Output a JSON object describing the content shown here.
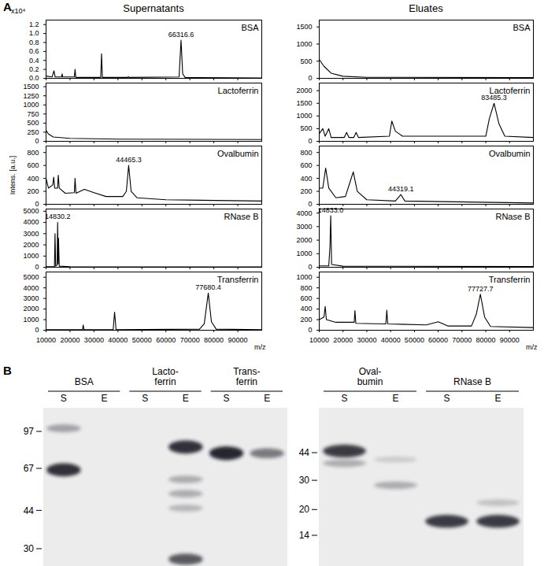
{
  "panel_A": {
    "label": "A",
    "column_titles": [
      "Supernatants",
      "Eluates"
    ]
  },
  "chart_data": [
    {
      "type": "line",
      "panel": "Supernatants",
      "title": "BSA",
      "axis_exponent": "x10⁴",
      "color": "#000000",
      "tick_labels": "y",
      "x": [
        10000,
        12500,
        13300,
        13800,
        16500,
        16700,
        17000,
        21800,
        22100,
        22400,
        32800,
        33150,
        33500,
        44000,
        44300,
        44600,
        65500,
        66316.6,
        67000,
        68000,
        100000
      ],
      "values": [
        0.05,
        0.03,
        0.17,
        0.03,
        0.03,
        0.1,
        0.03,
        0.03,
        0.2,
        0.02,
        0.02,
        0.55,
        0.02,
        0.02,
        0.04,
        0.02,
        0.03,
        0.85,
        0.1,
        0.02,
        0.01
      ],
      "xlim": [
        10000,
        100000
      ],
      "xticks": [
        10000,
        20000,
        30000,
        40000,
        50000,
        60000,
        70000,
        80000,
        90000
      ],
      "ylim": [
        0,
        1.3
      ],
      "yticks": [
        {
          "value": 0,
          "label": "0.0"
        },
        {
          "value": 0.2,
          "label": "0.2"
        },
        {
          "value": 0.4,
          "label": "0.4"
        },
        {
          "value": 0.6,
          "label": "0.6"
        },
        {
          "value": 0.8,
          "label": "0.8"
        },
        {
          "value": 1.0,
          "label": "1.0"
        },
        {
          "value": 1.2,
          "label": "1.2"
        }
      ],
      "annotations": [
        {
          "text": "66316.6",
          "x": 66316.6,
          "y": 0.85
        }
      ]
    },
    {
      "type": "line",
      "panel": "Supernatants",
      "title": "Lactoferrin",
      "color": "#000000",
      "tick_labels": "y",
      "x": [
        10000,
        11000,
        13000,
        20000,
        40000,
        100000
      ],
      "values": [
        300,
        200,
        120,
        80,
        60,
        50
      ],
      "xlim": [
        10000,
        100000
      ],
      "xticks": [
        10000,
        20000,
        30000,
        40000,
        50000,
        60000,
        70000,
        80000,
        90000
      ],
      "ylim": [
        0,
        1600
      ],
      "yticks": [
        0,
        250,
        500,
        750,
        1000,
        1250,
        1500
      ],
      "annotations": []
    },
    {
      "type": "line",
      "panel": "Supernatants",
      "title": "Ovalbumin",
      "ylabel": "Intens. [a.u.]",
      "color": "#000000",
      "tick_labels": "y",
      "x": [
        10000,
        11000,
        12800,
        13200,
        13600,
        14800,
        15100,
        15500,
        18000,
        21800,
        22100,
        22500,
        26000,
        30000,
        35000,
        42000,
        43500,
        44465.3,
        45500,
        48000,
        60000,
        100000
      ],
      "values": [
        400,
        250,
        300,
        420,
        250,
        250,
        450,
        250,
        170,
        180,
        400,
        170,
        230,
        180,
        120,
        120,
        200,
        600,
        200,
        100,
        70,
        50
      ],
      "xlim": [
        10000,
        100000
      ],
      "xticks": [
        10000,
        20000,
        30000,
        40000,
        50000,
        60000,
        70000,
        80000,
        90000
      ],
      "ylim": [
        0,
        900
      ],
      "yticks": [
        0,
        200,
        400,
        600,
        800
      ],
      "annotations": [
        {
          "text": "44465.3",
          "x": 44465.3,
          "y": 600
        }
      ]
    },
    {
      "type": "line",
      "panel": "Supernatants",
      "title": "RNase B",
      "color": "#000000",
      "tick_labels": "y",
      "x": [
        10000,
        13500,
        13750,
        14000,
        14600,
        14830.2,
        15050,
        15200,
        15500,
        20000,
        100000
      ],
      "values": [
        50,
        50,
        3000,
        100,
        200,
        4000,
        300,
        2600,
        100,
        50,
        30
      ],
      "xlim": [
        10000,
        100000
      ],
      "xticks": [
        10000,
        20000,
        30000,
        40000,
        50000,
        60000,
        70000,
        80000,
        90000
      ],
      "ylim": [
        0,
        5200
      ],
      "yticks": [
        0,
        1000,
        2000,
        3000,
        4000,
        5000
      ],
      "annotations": [
        {
          "text": "14830.2",
          "x": 14830.2,
          "y": 4000
        }
      ]
    },
    {
      "type": "line",
      "panel": "Supernatants",
      "title": "Transferrin",
      "xlabel": "m/z",
      "color": "#000000",
      "x": [
        10000,
        25200,
        25500,
        25800,
        38000,
        38600,
        39200,
        74000,
        76000,
        77680.4,
        79000,
        81000,
        100000
      ],
      "values": [
        50,
        50,
        500,
        50,
        50,
        1700,
        50,
        100,
        600,
        3500,
        800,
        100,
        50
      ],
      "xlim": [
        10000,
        100000
      ],
      "xticks": [
        10000,
        20000,
        30000,
        40000,
        50000,
        60000,
        70000,
        80000,
        90000
      ],
      "ylim": [
        0,
        5500
      ],
      "yticks": [
        0,
        1000,
        2000,
        3000,
        4000,
        5000
      ],
      "annotations": [
        {
          "text": "77680.4",
          "x": 77680.4,
          "y": 3500
        }
      ]
    },
    {
      "type": "line",
      "panel": "Eluates",
      "title": "BSA",
      "color": "#000000",
      "tick_labels": "y",
      "x": [
        10000,
        12000,
        15000,
        20000,
        30000,
        100000
      ],
      "values": [
        550,
        350,
        150,
        60,
        30,
        20
      ],
      "xlim": [
        10000,
        100000
      ],
      "xticks": [
        10000,
        20000,
        30000,
        40000,
        50000,
        60000,
        70000,
        80000,
        90000
      ],
      "ylim": [
        0,
        1700
      ],
      "yticks": [
        0,
        500,
        1000,
        1500
      ],
      "annotations": []
    },
    {
      "type": "line",
      "panel": "Eluates",
      "title": "Lactoferrin",
      "color": "#000000",
      "tick_labels": "y",
      "x": [
        10000,
        11500,
        12500,
        14000,
        15000,
        20500,
        21500,
        22500,
        24500,
        25500,
        26500,
        39500,
        40500,
        42000,
        45000,
        80000,
        81500,
        83485.3,
        85500,
        88000,
        100000
      ],
      "values": [
        300,
        500,
        200,
        500,
        150,
        150,
        350,
        150,
        150,
        350,
        150,
        200,
        800,
        400,
        200,
        200,
        900,
        1500,
        700,
        200,
        150
      ],
      "xlim": [
        10000,
        100000
      ],
      "xticks": [
        10000,
        20000,
        30000,
        40000,
        50000,
        60000,
        70000,
        80000,
        90000
      ],
      "ylim": [
        0,
        2300
      ],
      "yticks": [
        0,
        500,
        1000,
        1500,
        2000
      ],
      "annotations": [
        {
          "text": "83485.3",
          "x": 83485.3,
          "y": 1500
        }
      ]
    },
    {
      "type": "line",
      "panel": "Eluates",
      "title": "Ovalbumin",
      "color": "#000000",
      "tick_labels": "y",
      "x": [
        10000,
        11500,
        12700,
        14000,
        17000,
        21000,
        23000,
        24300,
        26000,
        30000,
        42000,
        44319.1,
        46000,
        100000
      ],
      "values": [
        250,
        250,
        560,
        250,
        100,
        120,
        350,
        500,
        200,
        70,
        50,
        150,
        50,
        20
      ],
      "xlim": [
        10000,
        100000
      ],
      "xticks": [
        10000,
        20000,
        30000,
        40000,
        50000,
        60000,
        70000,
        80000,
        90000
      ],
      "ylim": [
        0,
        900
      ],
      "yticks": [
        0,
        200,
        400,
        600,
        800
      ],
      "annotations": [
        {
          "text": "44319.1",
          "x": 44319.1,
          "y": 150
        }
      ]
    },
    {
      "type": "line",
      "panel": "Eluates",
      "title": "RNase B",
      "color": "#000000",
      "tick_labels": "y",
      "x": [
        10000,
        14000,
        14500,
        14833,
        15200,
        20000,
        100000
      ],
      "values": [
        100,
        100,
        1500,
        3800,
        200,
        80,
        50
      ],
      "xlim": [
        10000,
        100000
      ],
      "xticks": [
        10000,
        20000,
        30000,
        40000,
        50000,
        60000,
        70000,
        80000,
        90000
      ],
      "ylim": [
        0,
        4300
      ],
      "yticks": [
        0,
        1000,
        2000,
        3000,
        4000
      ],
      "annotations": [
        {
          "text": "14833.0",
          "x": 14833,
          "y": 3800
        }
      ]
    },
    {
      "type": "line",
      "panel": "Eluates",
      "title": "Transferrin",
      "xlabel": "m/z",
      "color": "#000000",
      "x": [
        10000,
        12000,
        12500,
        13000,
        17000,
        24700,
        25000,
        25400,
        38000,
        38400,
        38800,
        55000,
        60000,
        64000,
        74000,
        76000,
        77727.7,
        79500,
        82000,
        100000
      ],
      "values": [
        200,
        250,
        450,
        200,
        150,
        150,
        370,
        130,
        120,
        380,
        120,
        100,
        160,
        80,
        80,
        300,
        680,
        250,
        70,
        50
      ],
      "xlim": [
        10000,
        100000
      ],
      "xticks": [
        10000,
        20000,
        30000,
        40000,
        50000,
        60000,
        70000,
        80000,
        90000
      ],
      "ylim": [
        0,
        1100
      ],
      "yticks": [
        0,
        200,
        400,
        600,
        800,
        1000
      ],
      "annotations": [
        {
          "text": "77727.7",
          "x": 77727.7,
          "y": 680
        }
      ]
    }
  ],
  "panel_B": {
    "label": "B",
    "gels": [
      {
        "markers": [
          97,
          67,
          44,
          30
        ],
        "groups": [
          {
            "label": [
              "BSA"
            ],
            "lanes": [
              {
                "label": "S",
                "bands": [
                  {
                    "kDa": 66,
                    "intensity": 0.9
                  },
                  {
                    "kDa": 100,
                    "intensity": 0.35
                  }
                ]
              },
              {
                "label": "E",
                "bands": []
              }
            ]
          },
          {
            "label": [
              "Lacto-",
              "ferrin"
            ],
            "lanes": [
              {
                "label": "S",
                "bands": []
              },
              {
                "label": "E",
                "bands": [
                  {
                    "kDa": 83,
                    "intensity": 0.9
                  },
                  {
                    "kDa": 60,
                    "intensity": 0.3
                  },
                  {
                    "kDa": 52,
                    "intensity": 0.3
                  },
                  {
                    "kDa": 45,
                    "intensity": 0.25
                  },
                  {
                    "kDa": 27,
                    "intensity": 0.7
                  }
                ]
              }
            ]
          },
          {
            "label": [
              "Trans-",
              "ferrin"
            ],
            "lanes": [
              {
                "label": "S",
                "bands": [
                  {
                    "kDa": 78,
                    "intensity": 0.95
                  }
                ]
              },
              {
                "label": "E",
                "bands": [
                  {
                    "kDa": 78,
                    "intensity": 0.55
                  }
                ]
              }
            ]
          }
        ]
      },
      {
        "markers": [
          44,
          30,
          20,
          14
        ],
        "groups": [
          {
            "label": [
              "Oval-",
              "bumin"
            ],
            "lanes": [
              {
                "label": "S",
                "bands": [
                  {
                    "kDa": 45,
                    "intensity": 0.85
                  },
                  {
                    "kDa": 38,
                    "intensity": 0.3
                  }
                ]
              },
              {
                "label": "E",
                "bands": [
                  {
                    "kDa": 40,
                    "intensity": 0.15
                  },
                  {
                    "kDa": 28,
                    "intensity": 0.3
                  }
                ]
              }
            ]
          },
          {
            "label": [
              "RNase B"
            ],
            "lanes": [
              {
                "label": "S",
                "bands": [
                  {
                    "kDa": 17,
                    "intensity": 0.85
                  }
                ]
              },
              {
                "label": "E",
                "bands": [
                  {
                    "kDa": 17,
                    "intensity": 0.85
                  },
                  {
                    "kDa": 22,
                    "intensity": 0.2
                  }
                ]
              }
            ]
          }
        ]
      }
    ]
  }
}
